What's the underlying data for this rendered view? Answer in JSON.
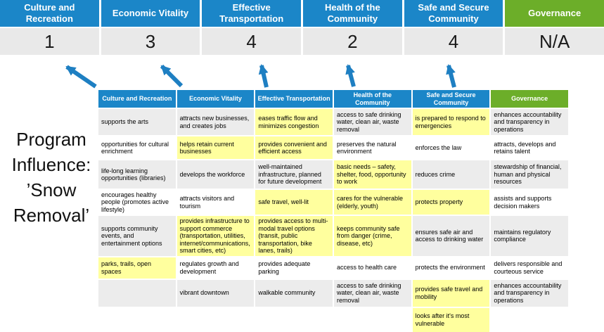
{
  "colors": {
    "blue": "#1b86c8",
    "green": "#6cae29",
    "highlight": "#ffff9e",
    "band": "#ececec",
    "scorebg": "#e9e9e9",
    "arrow": "#1e7fc2"
  },
  "pillars": [
    {
      "label": "Culture and Recreation",
      "score": "1"
    },
    {
      "label": "Economic Vitality",
      "score": "3"
    },
    {
      "label": "Effective Transportation",
      "score": "4"
    },
    {
      "label": "Health of the Community",
      "score": "2"
    },
    {
      "label": "Safe and Secure Community",
      "score": "4"
    },
    {
      "label": "Governance",
      "score": "N/A"
    }
  ],
  "program_label": {
    "lines": [
      "Program",
      "Influence:",
      "’Snow",
      "Removal’"
    ]
  },
  "matrix": {
    "headers": [
      "Culture and Recreation",
      "Economic Vitality",
      "Effective Transportation",
      "Health of the Community",
      "Safe and Secure Community",
      "Governance"
    ],
    "rows": [
      [
        {
          "text": "supports the arts",
          "hl": false
        },
        {
          "text": "attracts new businesses, and creates jobs",
          "hl": false
        },
        {
          "text": "eases traffic flow and minimizes congestion",
          "hl": true
        },
        {
          "text": "access to safe drinking water, clean air, waste removal",
          "hl": false
        },
        {
          "text": "is prepared to respond to emergencies",
          "hl": true
        },
        {
          "text": "enhances accountability and transparency in operations",
          "hl": false
        }
      ],
      [
        {
          "text": "opportunities for cultural enrichment",
          "hl": false
        },
        {
          "text": "helps retain current businesses",
          "hl": true
        },
        {
          "text": "provides convenient and efficient access",
          "hl": true
        },
        {
          "text": "preserves the natural environment",
          "hl": false
        },
        {
          "text": "enforces the law",
          "hl": false
        },
        {
          "text": "attracts, develops and retains talent",
          "hl": false
        }
      ],
      [
        {
          "text": "life-long learning opportunities (libraries)",
          "hl": false
        },
        {
          "text": "develops the workforce",
          "hl": false
        },
        {
          "text": "well-maintained infrastructure, planned for future development",
          "hl": false
        },
        {
          "text": "basic needs – safety, shelter, food, opportunity to work",
          "hl": true
        },
        {
          "text": "reduces crime",
          "hl": false
        },
        {
          "text": "stewardship of financial, human and physical resources",
          "hl": false
        }
      ],
      [
        {
          "text": "encourages healthy people (promotes active lifestyle)",
          "hl": false
        },
        {
          "text": "attracts visitors and tourism",
          "hl": false
        },
        {
          "text": "safe travel, well-lit",
          "hl": true
        },
        {
          "text": "cares for the vulnerable (elderly, youth)",
          "hl": true
        },
        {
          "text": "protects property",
          "hl": true
        },
        {
          "text": "assists and supports decision makers",
          "hl": false
        }
      ],
      [
        {
          "text": "supports community events, and entertainment options",
          "hl": false
        },
        {
          "text": "provides infrastructure to support commerce (transportation, utilities, internet/communications, smart cities, etc)",
          "hl": true
        },
        {
          "text": "provides access to multi-modal travel options (transit, public transportation, bike lanes, trails)",
          "hl": true
        },
        {
          "text": "keeps community safe from danger (crime, disease, etc)",
          "hl": true
        },
        {
          "text": "ensures safe air and access to drinking water",
          "hl": false
        },
        {
          "text": "maintains regulatory compliance",
          "hl": false
        }
      ],
      [
        {
          "text": "parks, trails, open spaces",
          "hl": true
        },
        {
          "text": "regulates growth and development",
          "hl": false
        },
        {
          "text": "provides adequate parking",
          "hl": false
        },
        {
          "text": "access to health care",
          "hl": false
        },
        {
          "text": "protects the environment",
          "hl": false
        },
        {
          "text": "delivers responsible and courteous service",
          "hl": false
        }
      ],
      [
        {
          "text": "",
          "hl": false
        },
        {
          "text": "vibrant downtown",
          "hl": false
        },
        {
          "text": "walkable community",
          "hl": false
        },
        {
          "text": "access to safe drinking water, clean air, waste removal",
          "hl": false
        },
        {
          "text": "provides safe travel and mobility",
          "hl": true
        },
        {
          "text": "enhances accountability and transparency in operations",
          "hl": false
        }
      ],
      [
        {
          "text": "",
          "hl": false
        },
        {
          "text": "",
          "hl": false
        },
        {
          "text": "",
          "hl": false
        },
        {
          "text": "",
          "hl": false
        },
        {
          "text": "looks after it's most vulnerable",
          "hl": true
        },
        {
          "text": "",
          "hl": false
        }
      ]
    ]
  }
}
